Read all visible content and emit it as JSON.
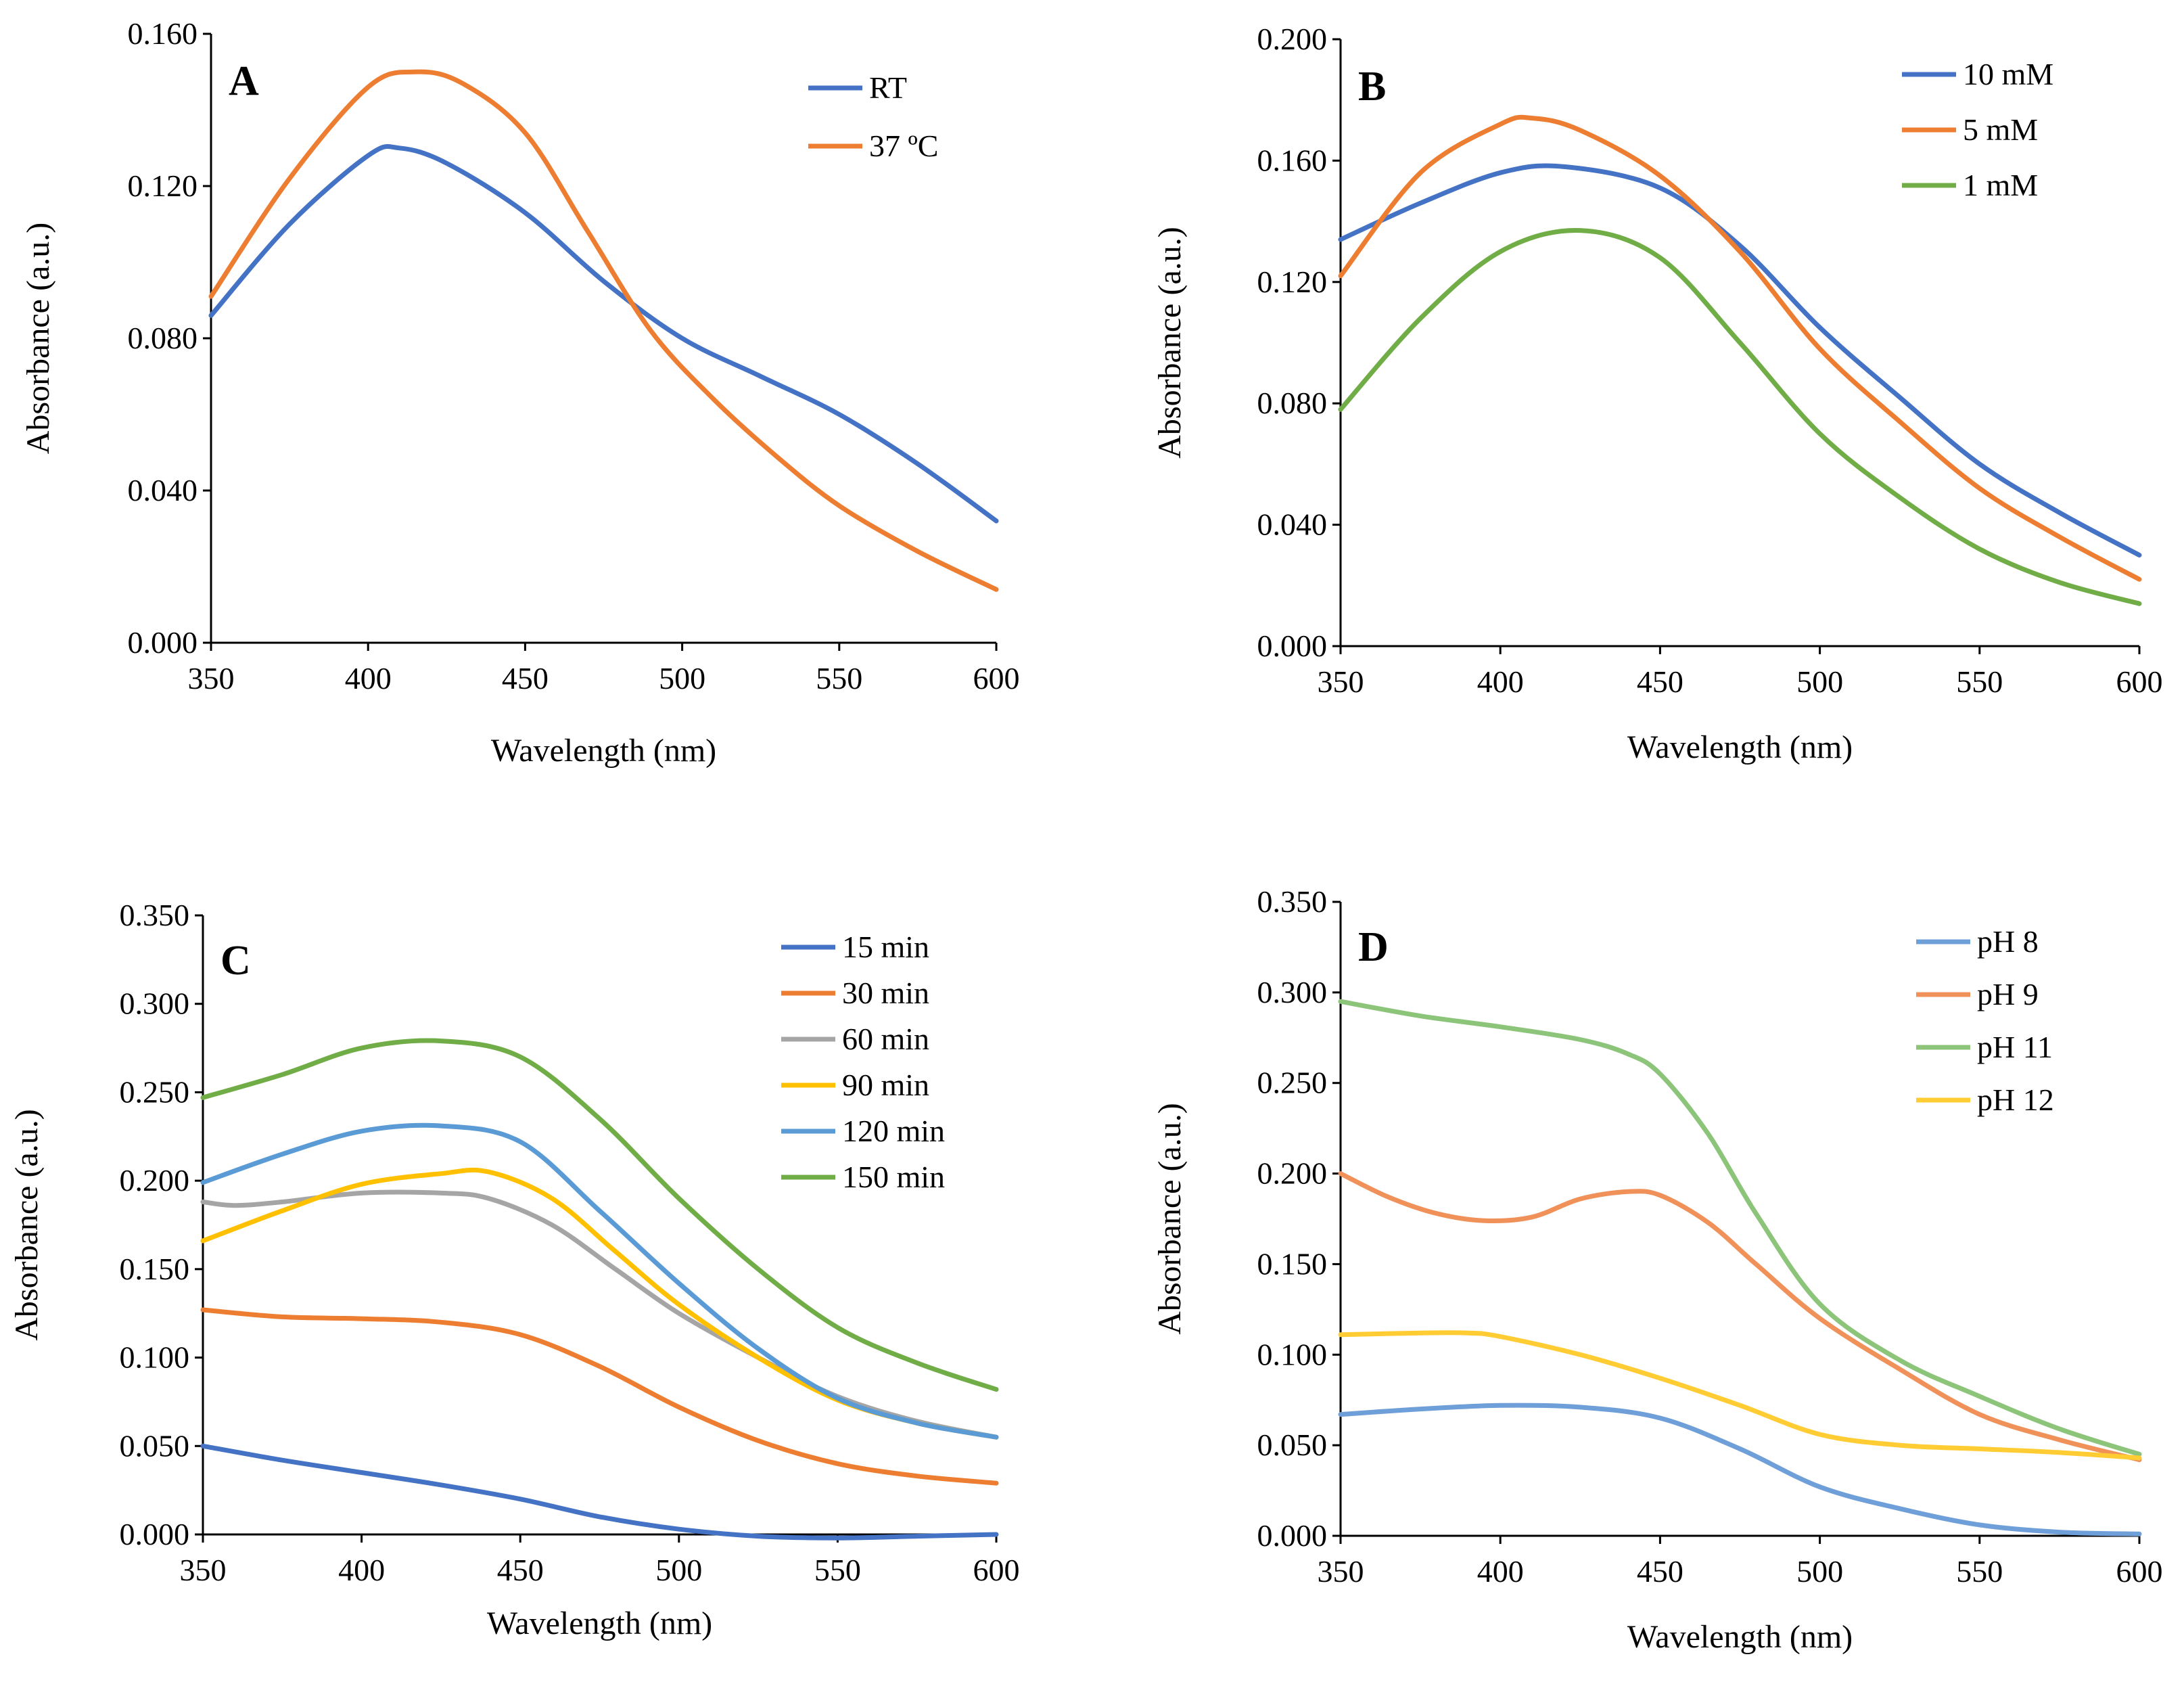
{
  "colors": {
    "blue": "#4472c4",
    "orange": "#ed7d31",
    "gray": "#a5a5a5",
    "yellow": "#ffc000",
    "lightblue": "#5b9bd5",
    "green": "#70ad47",
    "pale_blue": "#6f9fd8",
    "pale_orange": "#f0915a",
    "pale_green": "#8cc47a",
    "pale_yellow": "#ffcc33"
  },
  "chart_data": [
    {
      "id": "A",
      "panel_label": "A",
      "type": "line",
      "xlabel": "Wavelength (nm)",
      "ylabel": "Absorbance (a.u.)",
      "xlim": [
        350,
        600
      ],
      "ylim": [
        0,
        0.16
      ],
      "xticks": [
        350,
        400,
        450,
        500,
        550,
        600
      ],
      "yticks": [
        0,
        0.04,
        0.08,
        0.12,
        0.16
      ],
      "xtick_labels": [
        "350",
        "400",
        "450",
        "500",
        "550",
        "600"
      ],
      "ytick_labels": [
        "0.000",
        "0.040",
        "0.080",
        "0.120",
        "0.160"
      ],
      "legend_position": "top-right",
      "series": [
        {
          "name": "RT",
          "color": "#4472c4",
          "x": [
            350,
            375,
            400,
            410,
            425,
            450,
            475,
            500,
            525,
            550,
            575,
            600
          ],
          "y": [
            0.086,
            0.11,
            0.128,
            0.13,
            0.126,
            0.113,
            0.095,
            0.08,
            0.07,
            0.06,
            0.047,
            0.032
          ]
        },
        {
          "name": "37 ºC",
          "color": "#ed7d31",
          "x": [
            350,
            375,
            400,
            415,
            430,
            450,
            470,
            490,
            510,
            530,
            550,
            575,
            600
          ],
          "y": [
            0.091,
            0.122,
            0.146,
            0.15,
            0.147,
            0.134,
            0.108,
            0.082,
            0.064,
            0.049,
            0.036,
            0.024,
            0.014
          ]
        }
      ]
    },
    {
      "id": "B",
      "panel_label": "B",
      "type": "line",
      "xlabel": "Wavelength (nm)",
      "ylabel": "Absorbance (a.u.)",
      "xlim": [
        350,
        600
      ],
      "ylim": [
        0,
        0.2
      ],
      "xticks": [
        350,
        400,
        450,
        500,
        550,
        600
      ],
      "yticks": [
        0,
        0.04,
        0.08,
        0.12,
        0.16,
        0.2
      ],
      "xtick_labels": [
        "350",
        "400",
        "450",
        "500",
        "550",
        "600"
      ],
      "ytick_labels": [
        "0.000",
        "0.040",
        "0.080",
        "0.120",
        "0.160",
        "0.200"
      ],
      "legend_position": "top-right",
      "series": [
        {
          "name": "10 mM",
          "color": "#4472c4",
          "x": [
            350,
            375,
            400,
            420,
            450,
            475,
            500,
            525,
            550,
            575,
            600
          ],
          "y": [
            0.134,
            0.146,
            0.156,
            0.158,
            0.151,
            0.132,
            0.105,
            0.082,
            0.06,
            0.044,
            0.03
          ]
        },
        {
          "name": "5 mM",
          "color": "#ed7d31",
          "x": [
            350,
            375,
            400,
            410,
            425,
            450,
            475,
            500,
            525,
            550,
            575,
            600
          ],
          "y": [
            0.122,
            0.156,
            0.172,
            0.174,
            0.17,
            0.155,
            0.13,
            0.098,
            0.074,
            0.052,
            0.036,
            0.022
          ]
        },
        {
          "name": "1 mM",
          "color": "#70ad47",
          "x": [
            350,
            375,
            400,
            425,
            450,
            475,
            500,
            525,
            550,
            575,
            600
          ],
          "y": [
            0.078,
            0.108,
            0.13,
            0.137,
            0.128,
            0.1,
            0.07,
            0.049,
            0.032,
            0.021,
            0.014
          ]
        }
      ]
    },
    {
      "id": "C",
      "panel_label": "C",
      "type": "line",
      "xlabel": "Wavelength (nm)",
      "ylabel": "Absorbance (a.u.)",
      "xlim": [
        350,
        600
      ],
      "ylim": [
        0,
        0.35
      ],
      "xticks": [
        350,
        400,
        450,
        500,
        550,
        600
      ],
      "yticks": [
        0,
        0.05,
        0.1,
        0.15,
        0.2,
        0.25,
        0.3,
        0.35
      ],
      "xtick_labels": [
        "350",
        "400",
        "450",
        "500",
        "550",
        "600"
      ],
      "ytick_labels": [
        "0.000",
        "0.050",
        "0.100",
        "0.150",
        "0.200",
        "0.250",
        "0.300",
        "0.350"
      ],
      "legend_position": "top-right",
      "series": [
        {
          "name": "15 min",
          "color": "#4472c4",
          "x": [
            350,
            375,
            400,
            425,
            450,
            475,
            500,
            525,
            550,
            575,
            600
          ],
          "y": [
            0.05,
            0.042,
            0.035,
            0.028,
            0.02,
            0.01,
            0.003,
            -0.001,
            -0.002,
            -0.001,
            0.0
          ]
        },
        {
          "name": "30 min",
          "color": "#ed7d31",
          "x": [
            350,
            375,
            400,
            425,
            450,
            475,
            500,
            525,
            550,
            575,
            600
          ],
          "y": [
            0.127,
            0.123,
            0.122,
            0.12,
            0.113,
            0.095,
            0.072,
            0.053,
            0.04,
            0.033,
            0.029
          ]
        },
        {
          "name": "60 min",
          "color": "#a5a5a5",
          "x": [
            350,
            360,
            375,
            400,
            425,
            440,
            460,
            480,
            500,
            525,
            550,
            575,
            600
          ],
          "y": [
            0.188,
            0.186,
            0.188,
            0.193,
            0.193,
            0.19,
            0.175,
            0.15,
            0.125,
            0.1,
            0.078,
            0.064,
            0.055
          ]
        },
        {
          "name": "90 min",
          "color": "#ffc000",
          "x": [
            350,
            375,
            400,
            425,
            440,
            460,
            480,
            500,
            525,
            550,
            575,
            600
          ],
          "y": [
            0.166,
            0.183,
            0.198,
            0.204,
            0.205,
            0.19,
            0.16,
            0.13,
            0.1,
            0.076,
            0.063,
            0.055
          ]
        },
        {
          "name": "120 min",
          "color": "#5b9bd5",
          "x": [
            350,
            375,
            400,
            425,
            450,
            475,
            500,
            525,
            550,
            575,
            600
          ],
          "y": [
            0.199,
            0.215,
            0.228,
            0.231,
            0.222,
            0.183,
            0.142,
            0.105,
            0.077,
            0.063,
            0.055
          ]
        },
        {
          "name": "150 min",
          "color": "#70ad47",
          "x": [
            350,
            375,
            400,
            425,
            450,
            475,
            500,
            525,
            550,
            575,
            600
          ],
          "y": [
            0.247,
            0.26,
            0.275,
            0.279,
            0.27,
            0.235,
            0.19,
            0.15,
            0.117,
            0.097,
            0.082
          ]
        }
      ]
    },
    {
      "id": "D",
      "panel_label": "D",
      "type": "line",
      "xlabel": "Wavelength (nm)",
      "ylabel": "Absorbance (a.u.)",
      "xlim": [
        350,
        600
      ],
      "ylim": [
        0,
        0.35
      ],
      "xticks": [
        350,
        400,
        450,
        500,
        550,
        600
      ],
      "yticks": [
        0,
        0.05,
        0.1,
        0.15,
        0.2,
        0.25,
        0.3,
        0.35
      ],
      "xtick_labels": [
        "350",
        "400",
        "450",
        "500",
        "550",
        "600"
      ],
      "ytick_labels": [
        "0.000",
        "0.050",
        "0.100",
        "0.150",
        "0.200",
        "0.250",
        "0.300",
        "0.350"
      ],
      "legend_position": "top-right",
      "series": [
        {
          "name": "pH 8",
          "color": "#6f9fd8",
          "x": [
            350,
            375,
            400,
            425,
            450,
            475,
            500,
            525,
            550,
            575,
            600
          ],
          "y": [
            0.067,
            0.07,
            0.072,
            0.071,
            0.065,
            0.048,
            0.027,
            0.015,
            0.006,
            0.002,
            0.001
          ]
        },
        {
          "name": "pH 9",
          "color": "#f0915a",
          "x": [
            350,
            365,
            380,
            395,
            410,
            425,
            440,
            450,
            465,
            480,
            500,
            525,
            550,
            575,
            600
          ],
          "y": [
            0.2,
            0.187,
            0.178,
            0.174,
            0.176,
            0.186,
            0.19,
            0.188,
            0.173,
            0.15,
            0.12,
            0.092,
            0.067,
            0.053,
            0.042
          ]
        },
        {
          "name": "pH 11",
          "color": "#8cc47a",
          "x": [
            350,
            375,
            400,
            425,
            440,
            450,
            465,
            480,
            500,
            525,
            550,
            575,
            600
          ],
          "y": [
            0.295,
            0.287,
            0.281,
            0.274,
            0.266,
            0.255,
            0.222,
            0.178,
            0.128,
            0.097,
            0.077,
            0.059,
            0.045
          ]
        },
        {
          "name": "pH 12",
          "color": "#ffcc33",
          "x": [
            350,
            375,
            390,
            400,
            425,
            450,
            475,
            500,
            525,
            550,
            575,
            600
          ],
          "y": [
            0.111,
            0.112,
            0.112,
            0.11,
            0.1,
            0.087,
            0.072,
            0.056,
            0.05,
            0.048,
            0.046,
            0.043
          ]
        }
      ]
    }
  ]
}
